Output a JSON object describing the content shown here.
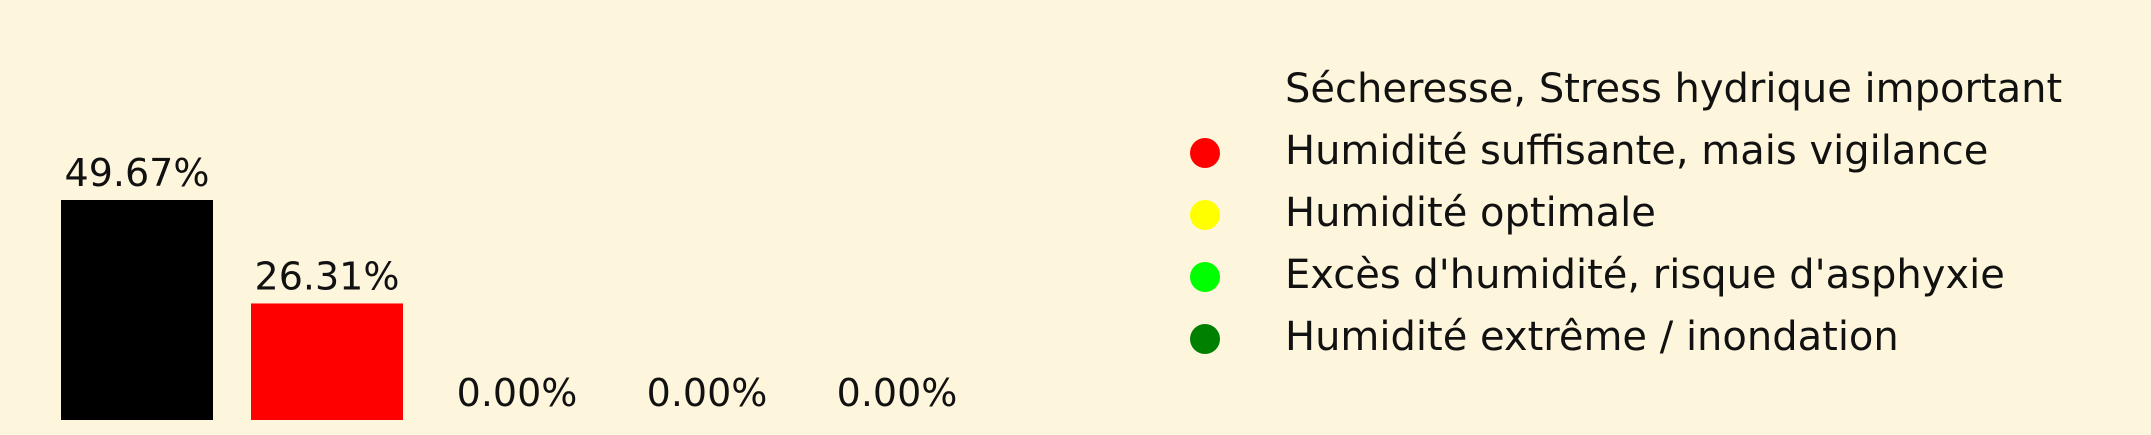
{
  "chart_data": {
    "type": "bar",
    "categories": [
      "Sécheresse, Stress hydrique important",
      "Humidité suffisante, mais vigilance",
      "Humidité optimale",
      "Excès d'humidité, risque d'asphyxie",
      "Humidité extrême / inondation"
    ],
    "values": [
      49.67,
      26.31,
      0.0,
      0.0,
      0.0
    ],
    "data_labels": [
      "49.67%",
      "26.31%",
      "0.00%",
      "0.00%",
      "0.00%"
    ],
    "colors": [
      "#000000",
      "#ff0000",
      "#ffff00",
      "#00ff00",
      "#008000"
    ],
    "ylim": [
      0,
      55
    ],
    "grid": false,
    "axes_visible": false,
    "legend_position": "right",
    "legend": [
      {
        "label": "Sécheresse, Stress hydrique important",
        "color": "#000000"
      },
      {
        "label": "Humidité suffisante, mais vigilance",
        "color": "#ff0000"
      },
      {
        "label": "Humidité optimale",
        "color": "#ffff00"
      },
      {
        "label": "Excès d'humidité, risque d'asphyxie",
        "color": "#00ff00"
      },
      {
        "label": "Humidité extrême / inondation",
        "color": "#008000"
      }
    ]
  }
}
